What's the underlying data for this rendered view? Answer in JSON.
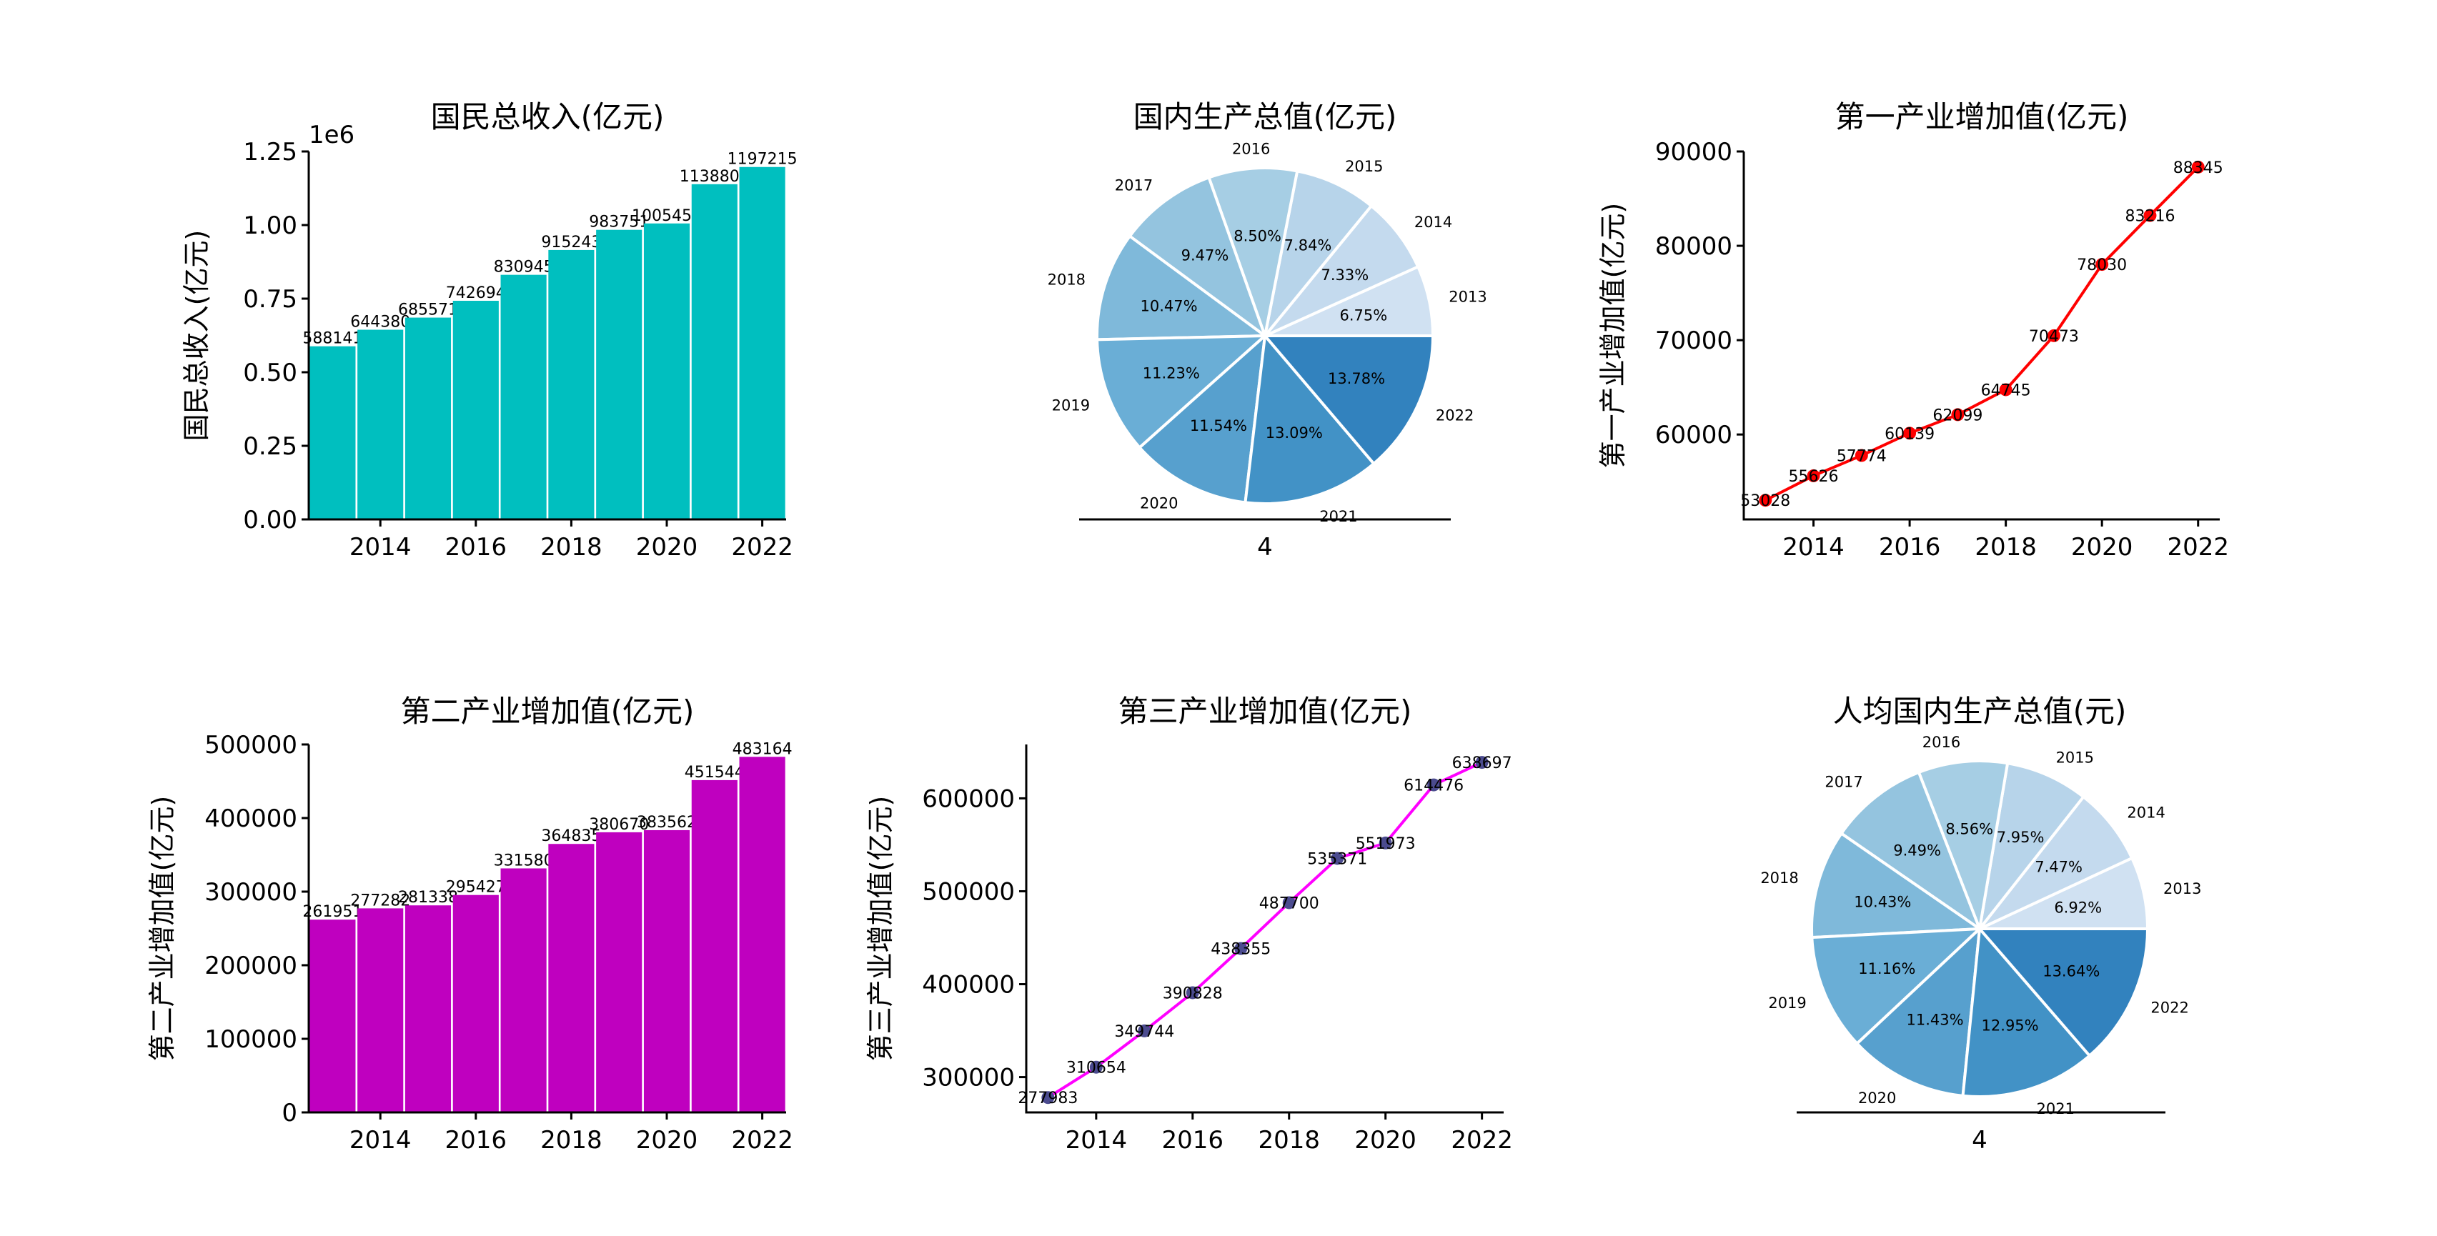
{
  "charts": [
    {
      "id": "gni",
      "type": "bar",
      "title": "国民总收入(亿元)",
      "ylabel": "国民总收入(亿元)",
      "exponent_label": "1e6",
      "color": "#00bfbf",
      "years": [
        2013,
        2014,
        2015,
        2016,
        2017,
        2018,
        2019,
        2020,
        2021,
        2022
      ],
      "values": [
        588141,
        644380,
        685571,
        742694,
        830945,
        915243,
        983751,
        1005451,
        1138807,
        1197215
      ],
      "ylim": [
        0,
        1.25
      ],
      "yticks": [
        "0.00",
        "0.25",
        "0.50",
        "0.75",
        "1.00",
        "1.25"
      ],
      "xticks": [
        2014,
        2016,
        2018,
        2020,
        2022
      ]
    },
    {
      "id": "gdp",
      "type": "pie",
      "title": "国内生产总值(亿元)",
      "xlabel": "4",
      "labels": [
        "2013",
        "2014",
        "2015",
        "2016",
        "2017",
        "2018",
        "2019",
        "2020",
        "2021",
        "2022"
      ],
      "percents": [
        "6.75%",
        "7.33%",
        "7.84%",
        "8.50%",
        "9.47%",
        "10.47%",
        "11.23%",
        "11.54%",
        "13.09%",
        "13.78%"
      ],
      "colors": [
        "#d0e1f2",
        "#c4daee",
        "#b7d4ea",
        "#a6cee4",
        "#94c4df",
        "#7fb9da",
        "#6aaed6",
        "#57a0ce",
        "#4292c6",
        "#3282be"
      ]
    },
    {
      "id": "primary",
      "type": "line",
      "title": "第一产业增加值(亿元)",
      "ylabel": "第一产业增加值(亿元)",
      "color": "#ff0000",
      "marker_color": "#ff0000",
      "years": [
        2013,
        2014,
        2015,
        2016,
        2017,
        2018,
        2019,
        2020,
        2021,
        2022
      ],
      "values": [
        53028,
        55626,
        57774,
        60139,
        62099,
        64745,
        70473,
        78030,
        83216,
        88345
      ],
      "yticks": [
        "60000",
        "70000",
        "80000",
        "90000"
      ],
      "xticks": [
        2014,
        2016,
        2018,
        2020,
        2022
      ]
    },
    {
      "id": "secondary",
      "type": "bar",
      "title": "第二产业增加值(亿元)",
      "ylabel": "第二产业增加值(亿元)",
      "color": "#bf00bf",
      "years": [
        2013,
        2014,
        2015,
        2016,
        2017,
        2018,
        2019,
        2020,
        2021,
        2022
      ],
      "values": [
        261951,
        277282,
        281338,
        295427,
        331580,
        364835,
        380670,
        383562,
        451544,
        483164
      ],
      "ylim": [
        0,
        500000
      ],
      "yticks": [
        "0",
        "100000",
        "200000",
        "300000",
        "400000",
        "500000"
      ],
      "xticks": [
        2014,
        2016,
        2018,
        2020,
        2022
      ]
    },
    {
      "id": "tertiary",
      "type": "line",
      "title": "第三产业增加值(亿元)",
      "ylabel": "第三产业增加值(亿元)",
      "color": "#ff00ff",
      "marker_color": "#4b4b8f",
      "years": [
        2013,
        2014,
        2015,
        2016,
        2017,
        2018,
        2019,
        2020,
        2021,
        2022
      ],
      "values": [
        277983,
        310654,
        349744,
        390828,
        438355,
        487700,
        535371,
        551973,
        614476,
        638697
      ],
      "yticks": [
        "300000",
        "400000",
        "500000",
        "600000"
      ],
      "xticks": [
        2014,
        2016,
        2018,
        2020,
        2022
      ]
    },
    {
      "id": "percap",
      "type": "pie",
      "title": "人均国内生产总值(元)",
      "xlabel": "4",
      "labels": [
        "2013",
        "2014",
        "2015",
        "2016",
        "2017",
        "2018",
        "2019",
        "2020",
        "2021",
        "2022"
      ],
      "percents": [
        "6.92%",
        "7.47%",
        "7.95%",
        "8.56%",
        "9.49%",
        "10.43%",
        "11.16%",
        "11.43%",
        "12.95%",
        "13.64%"
      ],
      "colors": [
        "#d0e1f2",
        "#c4daee",
        "#b7d4ea",
        "#a6cee4",
        "#94c4df",
        "#7fb9da",
        "#6aaed6",
        "#57a0ce",
        "#4292c6",
        "#3282be"
      ]
    }
  ]
}
